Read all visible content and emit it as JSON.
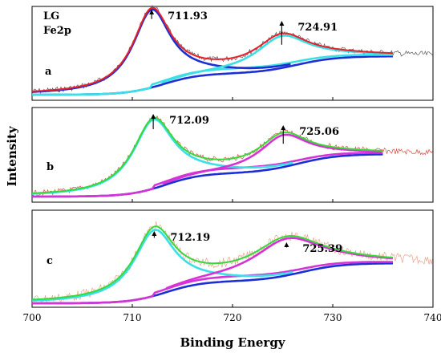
{
  "chart_data": {
    "type": "line",
    "xlabel": "Binding Energy",
    "ylabel": "Intensity",
    "xlim": [
      700,
      740
    ],
    "xticks": [
      "700",
      "710",
      "720",
      "730",
      "740"
    ],
    "sample_label": [
      "LG",
      "Fe2p"
    ],
    "colors": {
      "raw": "#555555",
      "red": "#e8202a",
      "blue": "#1c2fd6",
      "cyan": "#39e0e6",
      "green": "#37d83a",
      "magenta": "#d633d6",
      "raw_b": "#d94b3d",
      "raw_c": "#e8a38a"
    },
    "panels": [
      {
        "label": "a",
        "peaks": [
          {
            "position": 711.93,
            "label": "711.93"
          },
          {
            "position": 724.91,
            "label": "724.91"
          }
        ]
      },
      {
        "label": "b",
        "peaks": [
          {
            "position": 712.09,
            "label": "712.09"
          },
          {
            "position": 725.06,
            "label": "725.06"
          }
        ]
      },
      {
        "label": "c",
        "peaks": [
          {
            "position": 712.19,
            "label": "712.19"
          },
          {
            "position": 725.39,
            "label": "725.39"
          }
        ]
      }
    ]
  }
}
